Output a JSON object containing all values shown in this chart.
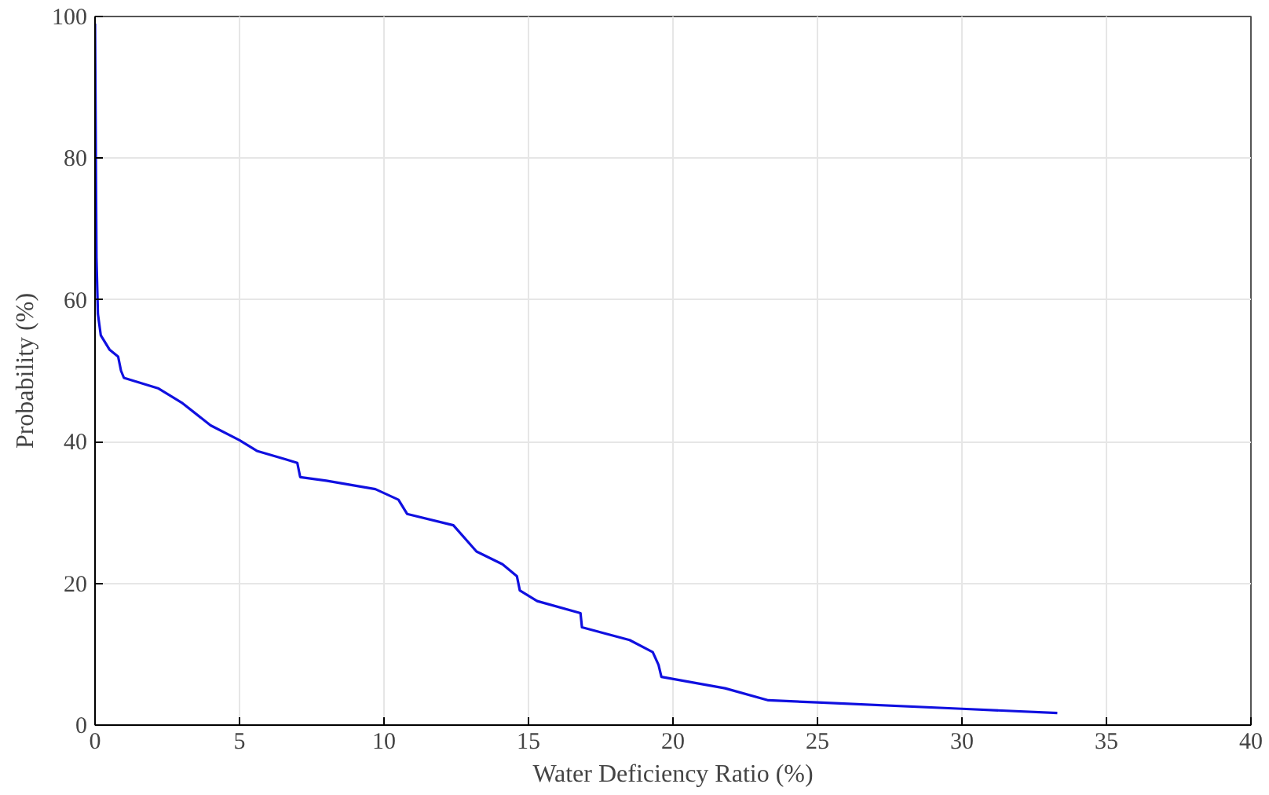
{
  "chart_data": {
    "type": "line",
    "xlabel": "Water Deficiency Ratio (%)",
    "ylabel": "Probability (%)",
    "xlim": [
      0,
      40
    ],
    "ylim": [
      0,
      100
    ],
    "xticks": [
      0,
      5,
      10,
      15,
      20,
      25,
      30,
      35,
      40
    ],
    "yticks": [
      0,
      20,
      40,
      60,
      80,
      100
    ],
    "grid": true,
    "line_style": "solid",
    "marker": "none",
    "series": [
      {
        "color": "#1010e0",
        "x": [
          0,
          0.05,
          0.1,
          0.2,
          0.5,
          0.8,
          0.9,
          1.0,
          2.2,
          3,
          4,
          5,
          5.6,
          6.6,
          7,
          7.1,
          8,
          9.7,
          10.5,
          10.8,
          12.4,
          13.2,
          14.1,
          14.6,
          14.7,
          15.3,
          16.8,
          16.85,
          18.5,
          19.3,
          19.5,
          19.6,
          21.8,
          23.3,
          25,
          30,
          33.3
        ],
        "values": [
          99,
          66,
          58,
          55,
          53,
          52,
          50,
          49,
          47.5,
          45.5,
          42.3,
          40.2,
          38.7,
          37.5,
          37,
          35,
          34.5,
          33.3,
          31.8,
          29.8,
          28.2,
          24.5,
          22.7,
          21,
          19,
          17.5,
          15.8,
          13.8,
          12,
          10.3,
          8.5,
          6.8,
          5.2,
          3.5,
          3.2,
          2.3,
          1.7
        ]
      }
    ]
  }
}
